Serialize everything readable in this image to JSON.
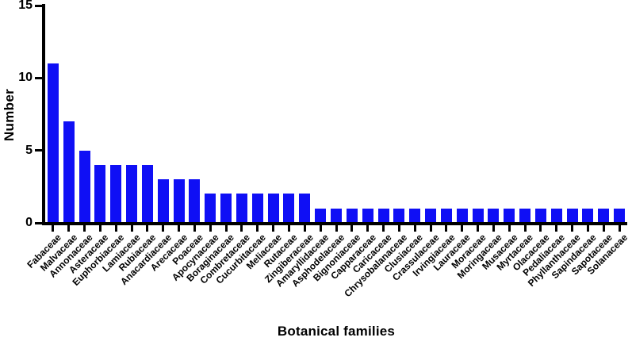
{
  "chart_data": {
    "type": "bar",
    "xlabel": "Botanical families",
    "ylabel": "Number",
    "ylim": [
      0,
      15
    ],
    "yticks": [
      "0",
      "5",
      "10",
      "15"
    ],
    "grid": false,
    "legend": "none",
    "bar_color": "#0f0ff5",
    "axis_color": "#000000",
    "background_color": "#ffffff",
    "categories": [
      "Fabaceae",
      "Malvaceae",
      "Annonaceae",
      "Asteraceae",
      "Euphorbiaceae",
      "Lamiaceae",
      "Rubiaceae",
      "Anacardiaceae",
      "Arecaceae",
      "Poaceae",
      "Apocynaceae",
      "Boraginaceae",
      "Combretaceae",
      "Cucurbitaceae",
      "Meliaceae",
      "Rutaceae",
      "Zingiberaceae",
      "Amaryllidaceae",
      "Asphodelaceae",
      "Bignoniaceae",
      "Capparaceae",
      "Caricaceae",
      "Chrysobalanaceae",
      "Clusiaceae",
      "Crassulaceae",
      "Irvingiaceae",
      "Lauraceae",
      "Moraceae",
      "Moringaceae",
      "Musaceae",
      "Myrtaceae",
      "Olacaceae",
      "Pedaliaceae",
      "Phyllanthaceae",
      "Sapindaceae",
      "Sapotaceae",
      "Solanaceae"
    ],
    "values": [
      11,
      7,
      5,
      4,
      4,
      4,
      4,
      3,
      3,
      3,
      2,
      2,
      2,
      2,
      2,
      2,
      2,
      1,
      1,
      1,
      1,
      1,
      1,
      1,
      1,
      1,
      1,
      1,
      1,
      1,
      1,
      1,
      1,
      1,
      1,
      1,
      1
    ]
  }
}
